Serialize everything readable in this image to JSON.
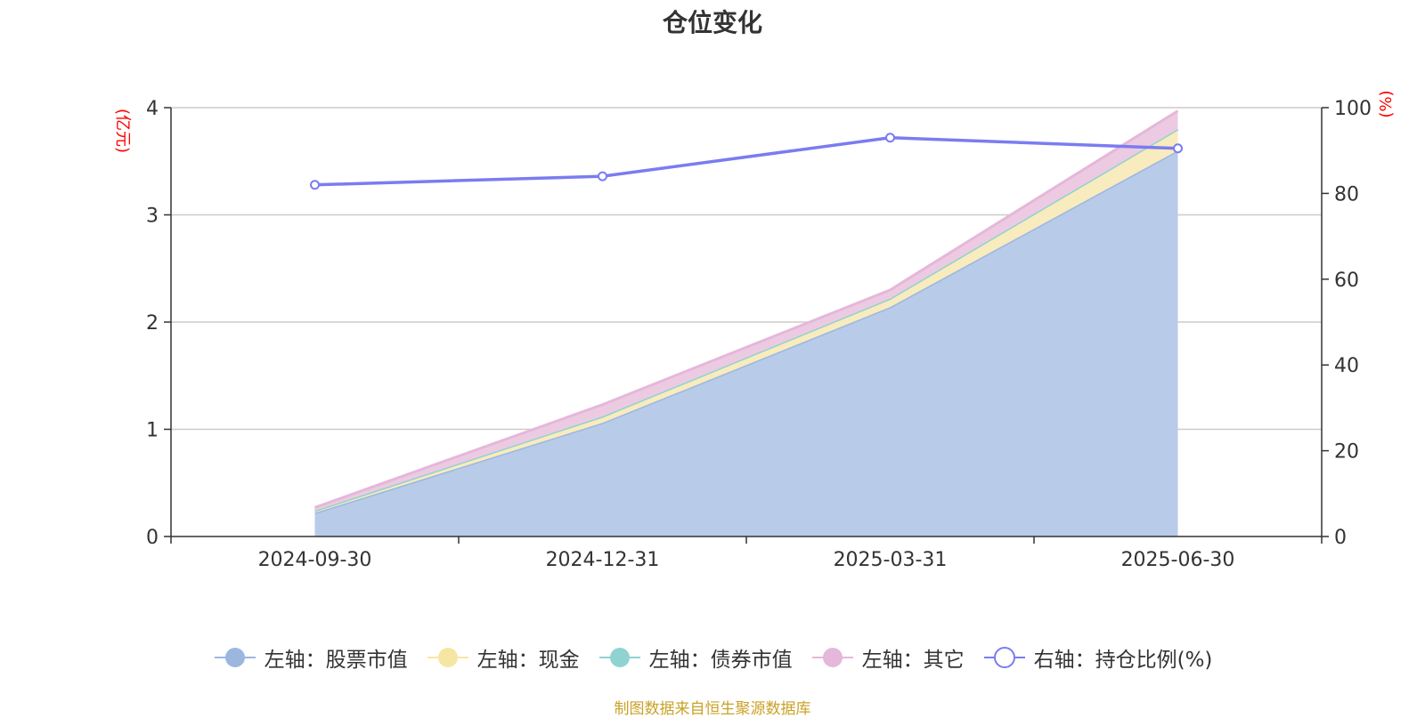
{
  "title": "仓位变化",
  "source_note": "制图数据来自恒生聚源数据库",
  "colors": {
    "stock": "#9bb7e0",
    "stock_fill": "#b8cbe9",
    "cash": "#f7e6a3",
    "cash_fill": "#f8ebbd",
    "bond": "#8fd3d1",
    "other": "#e5b7da",
    "other_fill": "#eccbe2",
    "ratio": "#7a7cf0",
    "axis_name": "#ff0000"
  },
  "legend": [
    {
      "key": "stock",
      "label": "左轴：股票市值",
      "icon": "filled-circle-icon"
    },
    {
      "key": "cash",
      "label": "左轴：现金",
      "icon": "filled-circle-icon"
    },
    {
      "key": "bond",
      "label": "左轴：债券市值",
      "icon": "filled-circle-icon"
    },
    {
      "key": "other",
      "label": "左轴：其它",
      "icon": "filled-circle-icon"
    },
    {
      "key": "ratio",
      "label": "右轴：持仓比例(%)",
      "icon": "hollow-circle-icon"
    }
  ],
  "chart_data": {
    "type": "area",
    "categories": [
      "2024-09-30",
      "2024-12-31",
      "2025-03-31",
      "2025-06-30"
    ],
    "left_axis": {
      "name": "(亿元)",
      "min": 0,
      "max": 4,
      "ticks": [
        0,
        1,
        2,
        3,
        4
      ]
    },
    "right_axis": {
      "name": "(%)",
      "min": 0,
      "max": 100,
      "ticks": [
        0,
        20,
        40,
        60,
        80,
        100
      ]
    },
    "stacked": true,
    "grid": true,
    "legend_position": "bottom",
    "series": [
      {
        "key": "stock",
        "name": "左轴：股票市值",
        "axis": "left",
        "type": "area",
        "values": [
          0.22,
          1.06,
          2.14,
          3.6
        ]
      },
      {
        "key": "cash",
        "name": "左轴：现金",
        "axis": "left",
        "type": "area",
        "values": [
          0.02,
          0.06,
          0.08,
          0.2
        ]
      },
      {
        "key": "bond",
        "name": "左轴：债券市值",
        "axis": "left",
        "type": "area",
        "values": [
          0,
          0,
          0,
          0
        ]
      },
      {
        "key": "other",
        "name": "左轴：其它",
        "axis": "left",
        "type": "area",
        "values": [
          0.03,
          0.11,
          0.08,
          0.17
        ]
      },
      {
        "key": "ratio",
        "name": "右轴：持仓比例(%)",
        "axis": "right",
        "type": "line",
        "values": [
          82.0,
          84.0,
          93.0,
          90.5
        ]
      }
    ]
  }
}
